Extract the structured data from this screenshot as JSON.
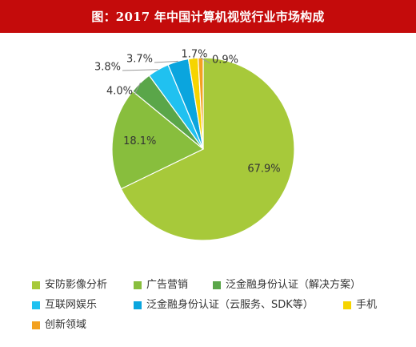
{
  "header": {
    "title": "图：2017 年中国计算机视觉行业市场构成"
  },
  "chart_data": {
    "type": "pie",
    "title": "图：2017 年中国计算机视觉行业市场构成",
    "slices": [
      {
        "label": "安防影像分析",
        "value": 67.9,
        "display": "67.9%",
        "color": "#a7c93a"
      },
      {
        "label": "广告营销",
        "value": 18.1,
        "display": "18.1%",
        "color": "#88be3d"
      },
      {
        "label": "泛金融身份认证（解决方案）",
        "value": 4.0,
        "display": "4.0%",
        "color": "#5aa649"
      },
      {
        "label": "互联网娱乐",
        "value": 3.8,
        "display": "3.8%",
        "color": "#20c1f0"
      },
      {
        "label": "泛金融身份认证（云服务、SDK等）",
        "value": 3.7,
        "display": "3.7%",
        "color": "#0aa5de"
      },
      {
        "label": "手机",
        "value": 1.7,
        "display": "1.7%",
        "color": "#f6d400"
      },
      {
        "label": "创新领域",
        "value": 0.9,
        "display": "0.9%",
        "color": "#f3a120"
      }
    ],
    "legend_position": "bottom"
  },
  "colors": {
    "title_bar": "#c40b0b",
    "title_text": "#ffffff",
    "label_text": "#333333",
    "leader_line": "#999999",
    "slice_border": "#ffffff"
  }
}
